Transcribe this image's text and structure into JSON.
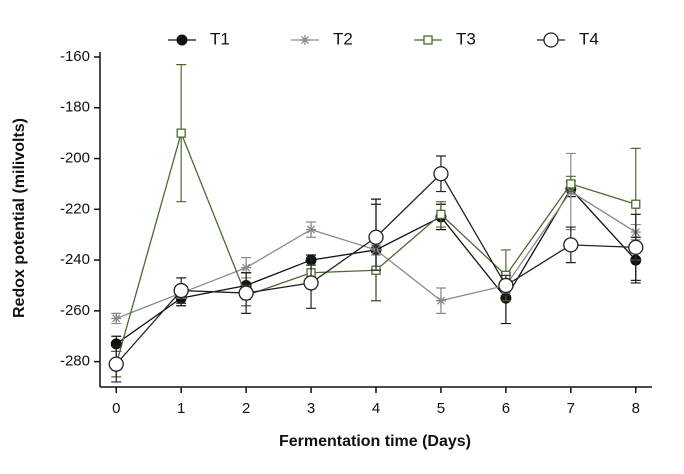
{
  "chart_data": {
    "type": "line",
    "x_label": "Fermentation time (Days)",
    "y_label": "Redox potential (milivolts)",
    "x": [
      0,
      1,
      2,
      3,
      4,
      5,
      6,
      7,
      8
    ],
    "xlim": [
      -0.25,
      8.25
    ],
    "xticks": [
      0,
      1,
      2,
      3,
      4,
      5,
      6,
      7,
      8
    ],
    "ylim": [
      -290,
      -160
    ],
    "yticks": [
      -280,
      -260,
      -240,
      -220,
      -200,
      -180,
      -160
    ],
    "legend": "top",
    "series": [
      {
        "name": "T1",
        "color": "#111111",
        "text_color": "#111111",
        "marker": "filled-circle",
        "values": [
          -273,
          -255,
          -250,
          -240,
          -236,
          -223,
          -255,
          -212,
          -240
        ],
        "errors": [
          3,
          3,
          5,
          2,
          20,
          5,
          10,
          3,
          9
        ]
      },
      {
        "name": "T2",
        "color": "#8a8a8a",
        "text_color": "#111111",
        "marker": "star",
        "values": [
          -263,
          -253,
          -243,
          -228,
          -236,
          -256,
          -250,
          -213,
          -229
        ],
        "errors": [
          2,
          2,
          4,
          3,
          2,
          5,
          3,
          15,
          3
        ]
      },
      {
        "name": "T3",
        "color": "#4b6a2e",
        "text_color": "#3d5a24",
        "marker": "square",
        "values": [
          -281,
          -190,
          -254,
          -245,
          -244,
          -222,
          -246,
          -210,
          -218
        ],
        "errors": [
          5,
          27,
          4,
          3,
          12,
          5,
          10,
          3,
          22
        ]
      },
      {
        "name": "T4",
        "color": "#222222",
        "text_color": "#111111",
        "marker": "open-circle",
        "values": [
          -281,
          -252,
          -253,
          -249,
          -231,
          -206,
          -250,
          -234,
          -235
        ],
        "errors": [
          7,
          5,
          8,
          10,
          13,
          7,
          4,
          7,
          13
        ]
      }
    ]
  }
}
